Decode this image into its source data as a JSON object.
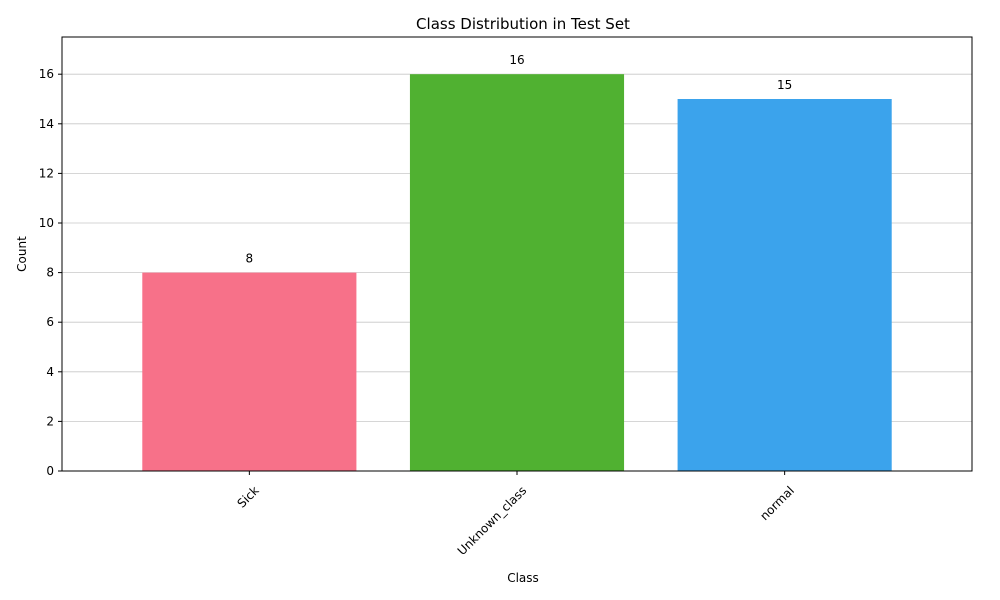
{
  "chart_data": {
    "type": "bar",
    "title": "Class Distribution in Test Set",
    "xlabel": "Class",
    "ylabel": "Count",
    "categories": [
      "Sick",
      "Unknown_class",
      "normal"
    ],
    "values": [
      8,
      16,
      15
    ],
    "data_labels": [
      "8",
      "16",
      "15"
    ],
    "colors": [
      "#f77189",
      "#50b131",
      "#3ba3ec"
    ],
    "ylim": [
      0,
      17.5
    ],
    "yticks": [
      0,
      2,
      4,
      6,
      8,
      10,
      12,
      14,
      16
    ],
    "ytick_labels": [
      "0",
      "2",
      "4",
      "6",
      "8",
      "10",
      "12",
      "14",
      "16"
    ],
    "xtick_rotation_deg": 45,
    "grid": "y",
    "legend": "none"
  }
}
